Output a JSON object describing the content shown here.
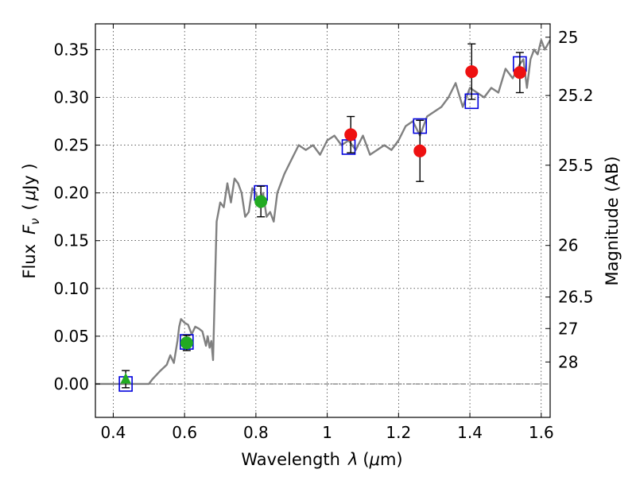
{
  "chart_data": {
    "type": "scatter",
    "title": "",
    "xlabel_prefix": "Wavelength",
    "xlabel_symbol": "λ",
    "xlabel_unit_open": "(",
    "xlabel_unit_mu": "μ",
    "xlabel_unit_rest": "m)",
    "ylabel_prefix": "Flux",
    "ylabel_symbol": "F",
    "ylabel_subscript": "ν",
    "ylabel_unit_open": "(",
    "ylabel_unit_mu": "μ",
    "ylabel_unit_rest": "Jy )",
    "y2label": "Magnitude (AB)",
    "xlim": [
      0.35,
      1.625
    ],
    "ylim": [
      -0.035,
      0.377
    ],
    "grid": true,
    "x_ticks": [
      0.4,
      0.6,
      0.8,
      1.0,
      1.2,
      1.4,
      1.6
    ],
    "x_tick_labels": [
      "0.4",
      "0.6",
      "0.8",
      "1",
      "1.2",
      "1.4",
      "1.6"
    ],
    "y_ticks": [
      0.0,
      0.05,
      0.1,
      0.15,
      0.2,
      0.25,
      0.3,
      0.35
    ],
    "y_tick_labels": [
      "0.00",
      "0.05",
      "0.10",
      "0.15",
      "0.20",
      "0.25",
      "0.30",
      "0.35"
    ],
    "mag_ticks": [
      {
        "label": "25",
        "flux": 0.363
      },
      {
        "label": "25.2",
        "flux": 0.302
      },
      {
        "label": "25.5",
        "flux": 0.229
      },
      {
        "label": "26",
        "flux": 0.145
      },
      {
        "label": "26.5",
        "flux": 0.091
      },
      {
        "label": "27",
        "flux": 0.058
      },
      {
        "label": "28",
        "flux": 0.023
      }
    ],
    "model_spectrum": {
      "name": "model SED",
      "color": "#808080",
      "x": [
        0.35,
        0.5,
        0.51,
        0.53,
        0.55,
        0.56,
        0.57,
        0.58,
        0.585,
        0.59,
        0.6,
        0.61,
        0.62,
        0.63,
        0.64,
        0.65,
        0.66,
        0.665,
        0.67,
        0.675,
        0.68,
        0.685,
        0.69,
        0.7,
        0.71,
        0.72,
        0.73,
        0.74,
        0.75,
        0.76,
        0.77,
        0.78,
        0.79,
        0.8,
        0.81,
        0.82,
        0.83,
        0.84,
        0.85,
        0.86,
        0.87,
        0.88,
        0.9,
        0.92,
        0.94,
        0.96,
        0.98,
        1.0,
        1.02,
        1.04,
        1.06,
        1.08,
        1.1,
        1.12,
        1.14,
        1.16,
        1.18,
        1.2,
        1.22,
        1.24,
        1.26,
        1.28,
        1.3,
        1.32,
        1.34,
        1.36,
        1.38,
        1.4,
        1.42,
        1.44,
        1.46,
        1.48,
        1.5,
        1.52,
        1.54,
        1.55,
        1.56,
        1.57,
        1.58,
        1.59,
        1.6,
        1.61,
        1.625
      ],
      "y": [
        0.0,
        0.0,
        0.005,
        0.013,
        0.02,
        0.03,
        0.022,
        0.045,
        0.06,
        0.068,
        0.064,
        0.062,
        0.052,
        0.06,
        0.058,
        0.055,
        0.04,
        0.05,
        0.038,
        0.045,
        0.025,
        0.1,
        0.17,
        0.19,
        0.185,
        0.21,
        0.19,
        0.215,
        0.21,
        0.2,
        0.175,
        0.18,
        0.205,
        0.2,
        0.185,
        0.2,
        0.175,
        0.18,
        0.17,
        0.2,
        0.21,
        0.22,
        0.235,
        0.25,
        0.245,
        0.25,
        0.24,
        0.255,
        0.26,
        0.25,
        0.255,
        0.245,
        0.26,
        0.24,
        0.245,
        0.25,
        0.245,
        0.255,
        0.27,
        0.275,
        0.26,
        0.28,
        0.285,
        0.29,
        0.3,
        0.315,
        0.29,
        0.31,
        0.305,
        0.3,
        0.31,
        0.305,
        0.33,
        0.32,
        0.335,
        0.34,
        0.31,
        0.34,
        0.35,
        0.345,
        0.36,
        0.35,
        0.36
      ]
    },
    "model_points": {
      "name": "model photometry",
      "marker": "open square",
      "color": "#0000dd",
      "x": [
        0.435,
        0.606,
        0.814,
        1.06,
        1.26,
        1.405,
        1.54
      ],
      "y": [
        0.0,
        0.044,
        0.2,
        0.248,
        0.27,
        0.296,
        0.335
      ]
    },
    "observed_points": [
      {
        "x": 0.435,
        "y": 0.005,
        "err": 0.009,
        "marker": "triangle",
        "color": "#22aa22"
      },
      {
        "x": 0.606,
        "y": 0.043,
        "err": 0.008,
        "marker": "circle",
        "color": "#22aa22"
      },
      {
        "x": 0.814,
        "y": 0.191,
        "err": 0.016,
        "marker": "circle",
        "color": "#22aa22"
      },
      {
        "x": 1.066,
        "y": 0.261,
        "err": 0.019,
        "marker": "circle",
        "color": "#ee1111"
      },
      {
        "x": 1.26,
        "y": 0.244,
        "err": 0.032,
        "marker": "circle",
        "color": "#ee1111"
      },
      {
        "x": 1.405,
        "y": 0.327,
        "err": 0.029,
        "marker": "circle",
        "color": "#ee1111"
      },
      {
        "x": 1.54,
        "y": 0.326,
        "err": 0.021,
        "marker": "circle",
        "color": "#ee1111"
      }
    ],
    "zero_line": {
      "y": 0.0,
      "style": "dash-dot",
      "color": "#555555"
    }
  }
}
